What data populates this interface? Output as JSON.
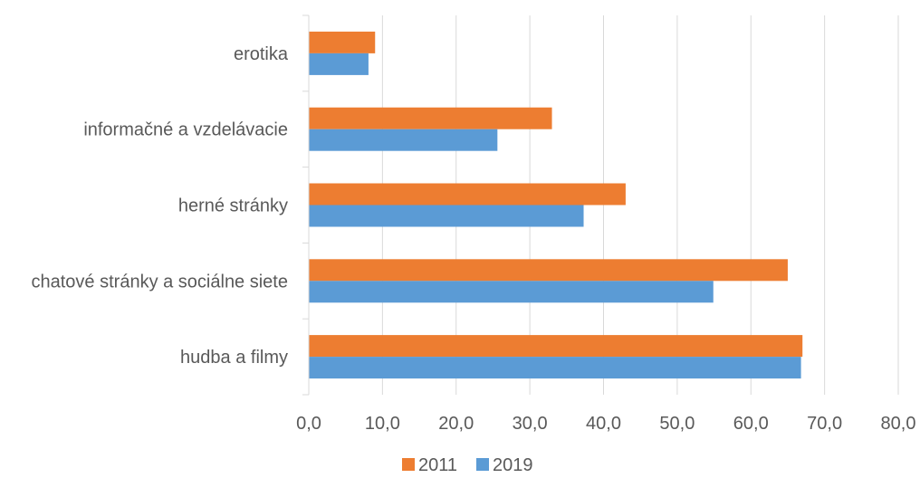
{
  "chart_data": {
    "type": "bar",
    "orientation": "horizontal",
    "categories": [
      "erotika",
      "informačné a vzdelávacie",
      "herné stránky",
      "chatové stránky a sociálne siete",
      "hudba a filmy"
    ],
    "series": [
      {
        "name": "2011",
        "color": "#ED7D31",
        "values": [
          9.0,
          33.0,
          43.0,
          65.0,
          67.0
        ]
      },
      {
        "name": "2019",
        "color": "#5B9BD5",
        "values": [
          8.1,
          25.6,
          37.3,
          54.9,
          66.8
        ]
      }
    ],
    "x_ticks": [
      "0,0",
      "10,0",
      "20,0",
      "30,0",
      "40,0",
      "50,0",
      "60,0",
      "70,0",
      "80,0"
    ],
    "xlim": [
      0,
      80
    ],
    "grid": true,
    "legend_position": "bottom",
    "title": "",
    "xlabel": "",
    "ylabel": ""
  }
}
